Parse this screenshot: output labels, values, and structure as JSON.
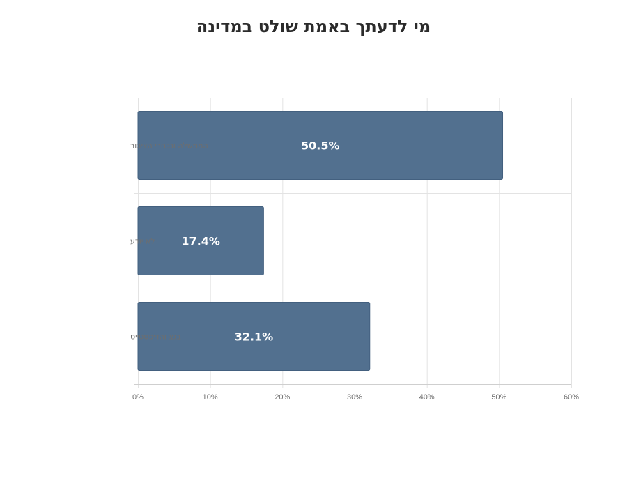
{
  "chart_data": {
    "type": "bar",
    "orientation": "horizontal",
    "title": "מי לדעתך באמת שולט במדינה",
    "categories": [
      "הממשלה ונבחרי הציבור",
      "לא יודע",
      "בגצ והדיפסטייט"
    ],
    "values": [
      50.5,
      17.4,
      32.1
    ],
    "value_labels": [
      "50.5%",
      "17.4%",
      "32.1%"
    ],
    "xlim": [
      0,
      60
    ],
    "x_ticks": [
      0,
      10,
      20,
      30,
      40,
      50,
      60
    ],
    "x_tick_labels": [
      "0%",
      "10%",
      "20%",
      "30%",
      "40%",
      "50%",
      "60%"
    ],
    "xlabel": "",
    "ylabel": "",
    "grid": true,
    "legend": "none",
    "bar_color": "#52708f"
  }
}
